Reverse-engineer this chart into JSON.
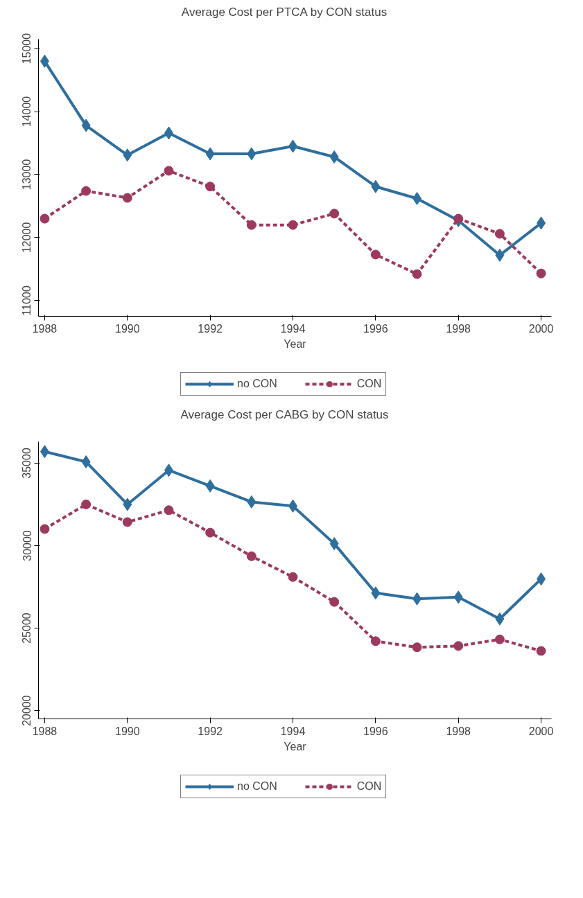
{
  "chart_data": [
    {
      "type": "line",
      "title": "Average Cost per PTCA by CON status",
      "xlabel": "Year",
      "x": [
        1988,
        1989,
        1990,
        1991,
        1992,
        1993,
        1994,
        1995,
        1996,
        1997,
        1998,
        1999,
        2000
      ],
      "series": [
        {
          "name": "no CON",
          "color": "#2e6f9e",
          "marker": "diamond",
          "line_style": "solid",
          "values": [
            14800,
            13780,
            13310,
            13660,
            13330,
            13330,
            13450,
            13280,
            12810,
            12620,
            12270,
            11720,
            12230
          ]
        },
        {
          "name": "CON",
          "color": "#9b3a5e",
          "marker": "circle",
          "line_style": "dashed",
          "values": [
            12300,
            12740,
            12630,
            13060,
            12810,
            12200,
            12200,
            12380,
            11730,
            11420,
            12300,
            12060,
            11430
          ]
        }
      ],
      "xlim": [
        1987.85,
        2000.25
      ],
      "xticks": [
        1988,
        1990,
        1992,
        1994,
        1996,
        1998,
        2000
      ],
      "ylim": [
        10750,
        15150
      ],
      "yticks": [
        11000,
        12000,
        13000,
        14000,
        15000
      ],
      "grid": false,
      "legend": "bottom"
    },
    {
      "type": "line",
      "title": "Average Cost per CABG by CON status",
      "xlabel": "Year",
      "x": [
        1988,
        1989,
        1990,
        1991,
        1992,
        1993,
        1994,
        1995,
        1996,
        1997,
        1998,
        1999,
        2000
      ],
      "series": [
        {
          "name": "no CON",
          "color": "#2e6f9e",
          "marker": "diamond",
          "line_style": "solid",
          "values": [
            35700,
            35080,
            32500,
            34570,
            33620,
            32650,
            32400,
            30120,
            27130,
            26780,
            26880,
            25560,
            27980
          ]
        },
        {
          "name": "CON",
          "color": "#9b3a5e",
          "marker": "circle",
          "line_style": "dashed",
          "values": [
            31010,
            32500,
            31430,
            32150,
            30790,
            29360,
            28100,
            26590,
            24210,
            23840,
            23920,
            24320,
            23620
          ]
        }
      ],
      "xlim": [
        1987.85,
        2000.25
      ],
      "xticks": [
        1988,
        1990,
        1992,
        1994,
        1996,
        1998,
        2000
      ],
      "ylim": [
        19500,
        36300
      ],
      "yticks": [
        20000,
        25000,
        30000,
        35000
      ],
      "grid": false,
      "legend": "bottom"
    }
  ]
}
